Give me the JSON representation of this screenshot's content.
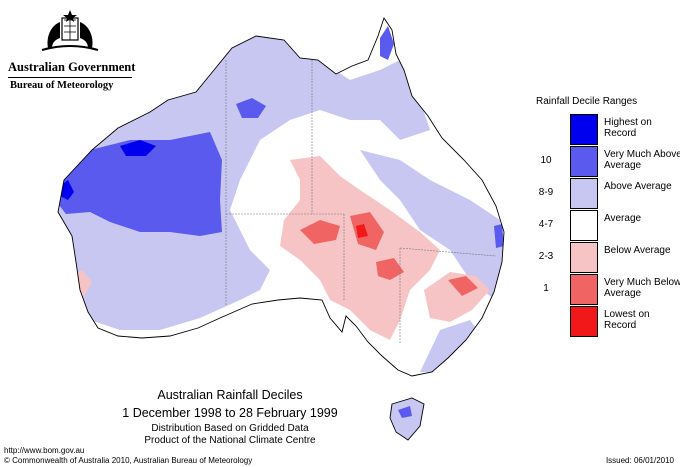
{
  "header": {
    "government": "Australian Government",
    "bureau": "Bureau of Meteorology"
  },
  "map": {
    "title": "Australian Rainfall Deciles",
    "dates": "1 December 1998 to 28 February 1999",
    "subtitle_line1": "Distribution Based on Gridded Data",
    "subtitle_line2": "Product of the National Climate Centre"
  },
  "legend": {
    "title": "Rainfall Decile Ranges",
    "items": [
      {
        "range": "",
        "label": "Highest on Record",
        "color": "#0000ee"
      },
      {
        "range": "10",
        "label": "Very Much Above Average",
        "color": "#5a5aee"
      },
      {
        "range": "8-9",
        "label": "Above Average",
        "color": "#c7c7f2"
      },
      {
        "range": "4-7",
        "label": "Average",
        "color": "#ffffff"
      },
      {
        "range": "2-3",
        "label": "Below Average",
        "color": "#f7c4c6"
      },
      {
        "range": "1",
        "label": "Very Much Below Average",
        "color": "#f06464"
      },
      {
        "range": "",
        "label": "Lowest on Record",
        "color": "#f01818"
      }
    ]
  },
  "footer": {
    "url": "http://www.bom.gov.au",
    "copyright": "© Commonwealth of Australia 2010, Australian Bureau of Meteorology",
    "issued": "Issued: 06/01/2010"
  }
}
